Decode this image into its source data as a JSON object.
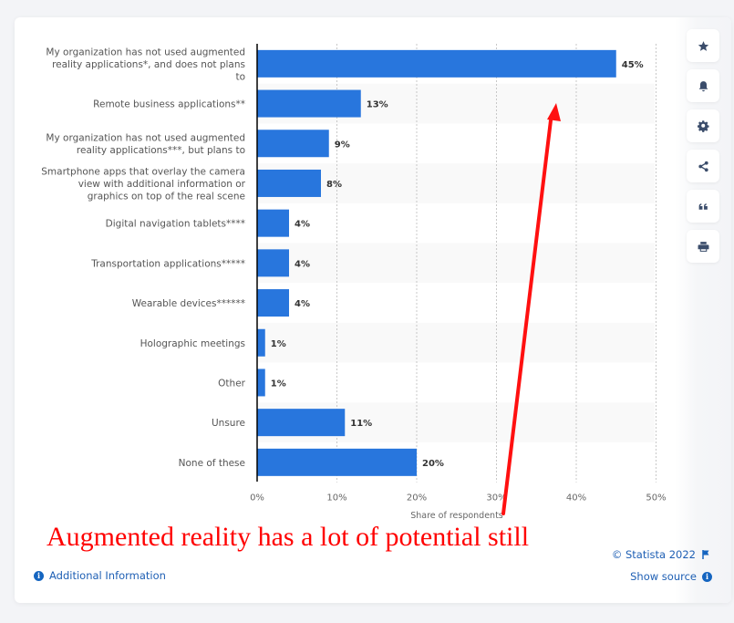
{
  "chart_data": {
    "type": "bar",
    "orientation": "horizontal",
    "categories": [
      "My organization has not used augmented reality applications*, and does not plans to",
      "Remote business applications**",
      "My organization has not used augmented reality applications***, but plans to",
      "Smartphone apps that overlay the camera view with additional information or graphics on top of the real scene",
      "Digital navigation tablets****",
      "Transportation applications*****",
      "Wearable devices******",
      "Holographic meetings",
      "Other",
      "Unsure",
      "None of these"
    ],
    "category_lines": [
      [
        "My organization has not used augmented",
        "reality applications*, and does not plans",
        "to"
      ],
      [
        "Remote business applications**"
      ],
      [
        "My organization has not used augmented",
        "reality applications***, but plans to"
      ],
      [
        "Smartphone apps that overlay the camera",
        "view with additional information or",
        "graphics on top of the real scene"
      ],
      [
        "Digital navigation tablets****"
      ],
      [
        "Transportation applications*****"
      ],
      [
        "Wearable devices******"
      ],
      [
        "Holographic meetings"
      ],
      [
        "Other"
      ],
      [
        "Unsure"
      ],
      [
        "None of these"
      ]
    ],
    "values": [
      45,
      13,
      9,
      8,
      4,
      4,
      4,
      1,
      1,
      11,
      20
    ],
    "value_labels": [
      "45%",
      "13%",
      "9%",
      "8%",
      "4%",
      "4%",
      "4%",
      "1%",
      "1%",
      "11%",
      "20%"
    ],
    "xlabel": "Share of respondents",
    "ylabel": "",
    "xlim": [
      0,
      50
    ],
    "xticks": [
      0,
      10,
      20,
      30,
      40,
      50
    ],
    "xtick_labels": [
      "0%",
      "10%",
      "20%",
      "30%",
      "40%",
      "50%"
    ],
    "grid": true,
    "bar_color": "#2876dd",
    "band_color": "#f9f9f9"
  },
  "annotation": {
    "text": "Augmented reality has a lot of potential still",
    "color": "#ff0000",
    "arrow": "red arrow pointing up toward the 45% bar"
  },
  "toolbar": {
    "buttons": [
      {
        "name": "favorite",
        "icon": "star-icon"
      },
      {
        "name": "notification",
        "icon": "bell-icon"
      },
      {
        "name": "settings",
        "icon": "gear-icon"
      },
      {
        "name": "share",
        "icon": "share-icon"
      },
      {
        "name": "cite",
        "icon": "quote-icon"
      },
      {
        "name": "print",
        "icon": "print-icon"
      }
    ]
  },
  "footer": {
    "additional_info": "Additional Information",
    "copyright": "© Statista 2022",
    "show_source": "Show source",
    "link_color": "#1e5fb4"
  }
}
